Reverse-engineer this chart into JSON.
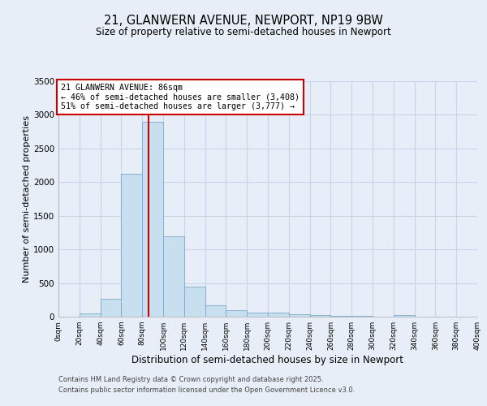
{
  "title_line1": "21, GLANWERN AVENUE, NEWPORT, NP19 9BW",
  "title_line2": "Size of property relative to semi-detached houses in Newport",
  "xlabel": "Distribution of semi-detached houses by size in Newport",
  "ylabel": "Number of semi-detached properties",
  "property_size": 86,
  "bin_edges": [
    0,
    20,
    40,
    60,
    80,
    100,
    120,
    140,
    160,
    180,
    200,
    220,
    240,
    260,
    280,
    300,
    320,
    340,
    360,
    380,
    400
  ],
  "counts": [
    0,
    50,
    260,
    2130,
    2900,
    1200,
    450,
    175,
    100,
    60,
    60,
    35,
    25,
    15,
    10,
    5,
    20,
    5,
    0,
    0
  ],
  "bar_color": "#c8dff0",
  "bar_edge_color": "#7aaac8",
  "vline_color": "#cc0000",
  "vline_x": 86,
  "annotation_text": "21 GLANWERN AVENUE: 86sqm\n← 46% of semi-detached houses are smaller (3,408)\n51% of semi-detached houses are larger (3,777) →",
  "annotation_box_color": "white",
  "annotation_box_edge_color": "#cc0000",
  "ylim": [
    0,
    3500
  ],
  "yticks": [
    0,
    500,
    1000,
    1500,
    2000,
    2500,
    3000,
    3500
  ],
  "footnote_line1": "Contains HM Land Registry data © Crown copyright and database right 2025.",
  "footnote_line2": "Contains public sector information licensed under the Open Government Licence v3.0.",
  "background_color": "#e8eef8",
  "grid_color": "#c8d4e8"
}
